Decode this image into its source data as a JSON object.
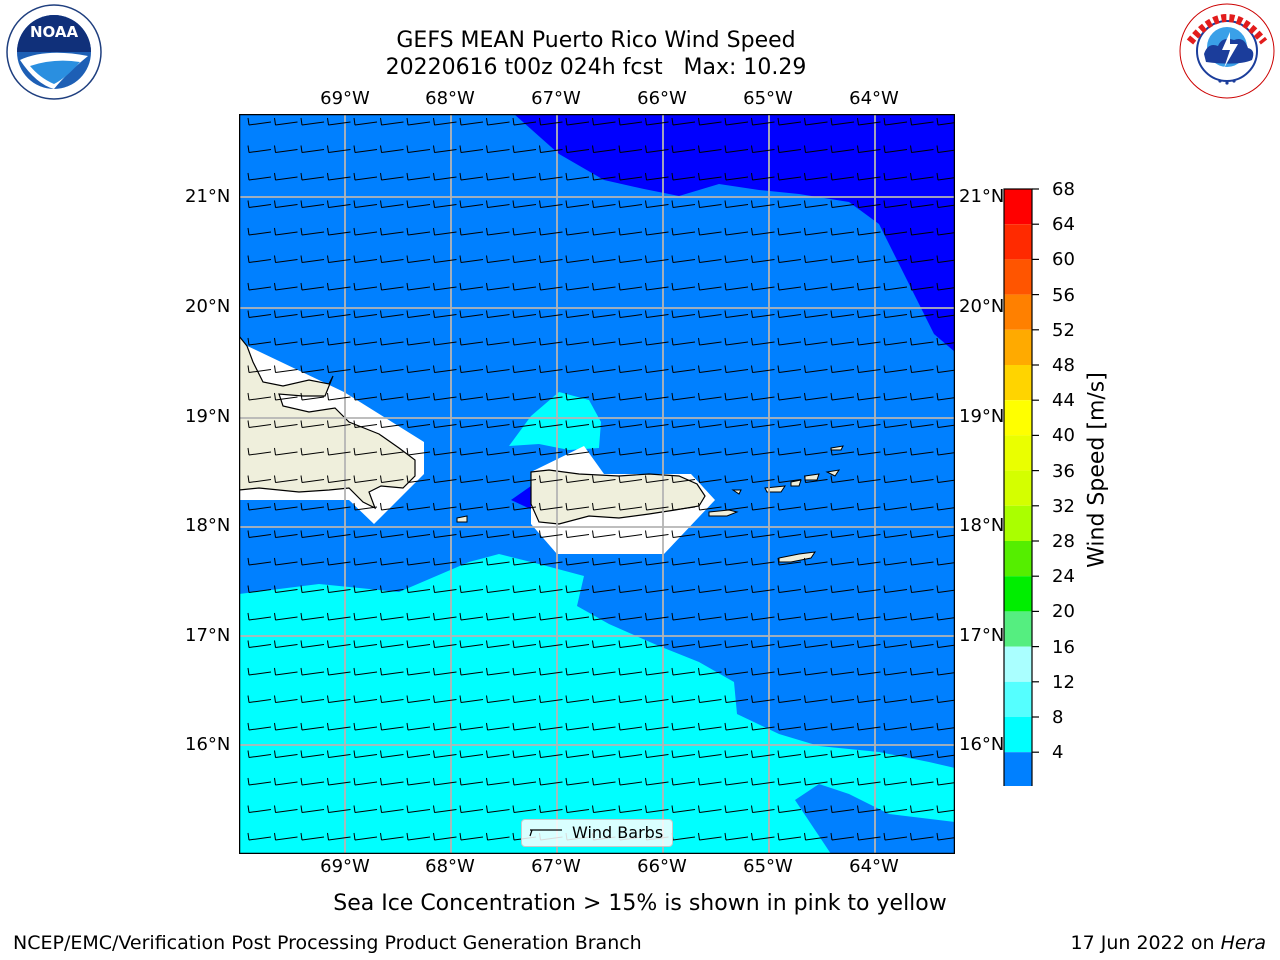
{
  "header": {
    "title_line1": "GEFS MEAN Puerto Rico Wind Speed",
    "title_line2": "20220616 t00z 024h fcst   Max: 10.29"
  },
  "logos": {
    "noaa_text": "NOAA",
    "nws_ring_text": "NATIONAL WEATHER SERVICE",
    "noaa_ring_text": "NATIONAL OCEANIC AND ATMOSPHERIC ADMINISTRATION · U.S. DEPARTMENT OF COMMERCE"
  },
  "map": {
    "lon_labels": [
      "69°W",
      "68°W",
      "67°W",
      "66°W",
      "65°W",
      "64°W"
    ],
    "lat_labels": [
      "21°N",
      "20°N",
      "19°N",
      "18°N",
      "17°N",
      "16°N"
    ],
    "legend_label": "Wind Barbs",
    "colors": {
      "band_4_8": "#0080ff",
      "band_8_12": "#00ffff",
      "under_4": "#0000ff",
      "land": "#efefdc",
      "grid": "#b4b4b4"
    }
  },
  "colorbar": {
    "label": "Wind Speed [m/s]",
    "ticks": [
      "68",
      "64",
      "60",
      "56",
      "52",
      "48",
      "44",
      "40",
      "36",
      "32",
      "28",
      "24",
      "20",
      "16",
      "12",
      "8",
      "4"
    ],
    "colors": [
      "#ff0000",
      "#ff2a00",
      "#ff5500",
      "#ff8000",
      "#ffaa00",
      "#ffd400",
      "#ffff00",
      "#eaff00",
      "#d4ff00",
      "#aaff00",
      "#55ee00",
      "#00ee00",
      "#55ee80",
      "#aaffff",
      "#55ffff",
      "#00ffff",
      "#0080ff"
    ],
    "under_color": "#0000ff"
  },
  "notes": {
    "sea_ice": "Sea Ice Concentration > 15% is shown in pink to yellow"
  },
  "footer": {
    "left": "NCEP/EMC/Verification Post Processing Product Generation Branch",
    "right_prefix": "17 Jun 2022 on ",
    "right_host": "Hera"
  }
}
